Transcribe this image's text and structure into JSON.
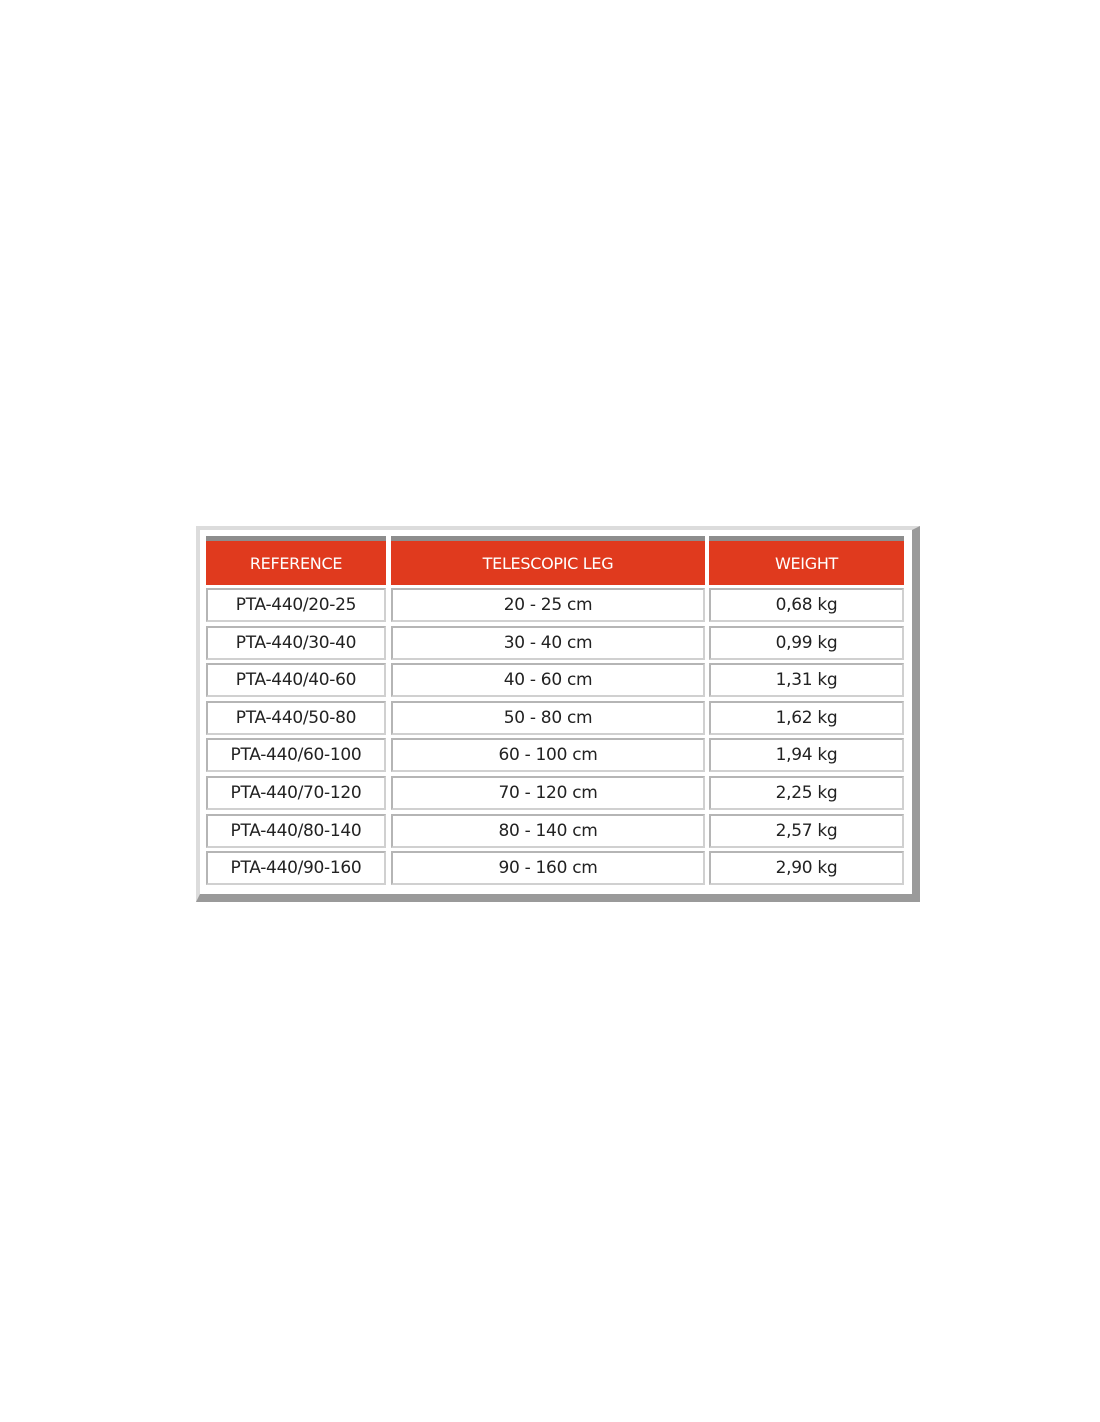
{
  "table": {
    "headers": [
      "REFERENCE",
      "TELESCOPIC LEG",
      "WEIGHT"
    ],
    "rows": [
      [
        "PTA-440/20-25",
        "20 - 25 cm",
        "0,68 kg"
      ],
      [
        "PTA-440/30-40",
        "30 - 40 cm",
        "0,99 kg"
      ],
      [
        "PTA-440/40-60",
        "40 - 60 cm",
        "1,31 kg"
      ],
      [
        "PTA-440/50-80",
        "50 - 80 cm",
        "1,62 kg"
      ],
      [
        "PTA-440/60-100",
        "60 - 100 cm",
        "1,94 kg"
      ],
      [
        "PTA-440/70-120",
        "70 - 120 cm",
        "2,25 kg"
      ],
      [
        "PTA-440/80-140",
        "80 - 140 cm",
        "2,57 kg"
      ],
      [
        "PTA-440/90-160",
        "90 - 160 cm",
        "2,90 kg"
      ]
    ],
    "header_color": "#e03a1e"
  }
}
